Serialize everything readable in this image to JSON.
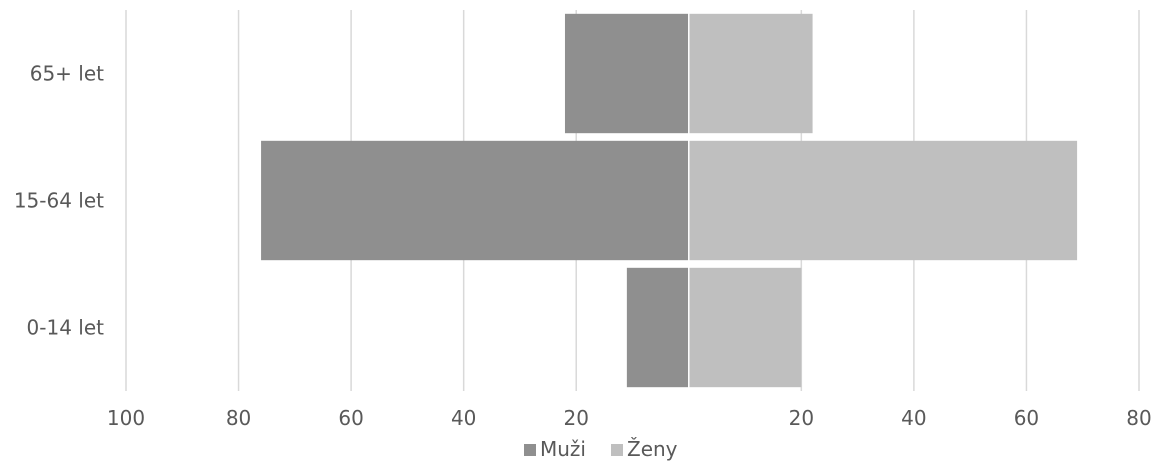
{
  "chart_data": {
    "type": "bar",
    "orientation": "horizontal",
    "layout": "population-pyramid",
    "title": "",
    "xlabel": "",
    "ylabel": "",
    "categories": [
      "65+ let",
      "15-64 let",
      "0-14 let"
    ],
    "series": [
      {
        "name": "Muži",
        "values": [
          22,
          76,
          11
        ],
        "color": "#8f8f8f",
        "side": "left"
      },
      {
        "name": "Ženy",
        "values": [
          22,
          69,
          20
        ],
        "color": "#bfbfbf",
        "side": "right"
      }
    ],
    "x_ticks": [
      {
        "value": -100,
        "label": "100"
      },
      {
        "value": -80,
        "label": "80"
      },
      {
        "value": -60,
        "label": "60"
      },
      {
        "value": -40,
        "label": "40"
      },
      {
        "value": -20,
        "label": "20"
      },
      {
        "value": 20,
        "label": "20"
      },
      {
        "value": 40,
        "label": "40"
      },
      {
        "value": 60,
        "label": "60"
      },
      {
        "value": 80,
        "label": "80"
      }
    ],
    "xlim": [
      -100,
      80
    ],
    "grid": true,
    "legend_position": "bottom"
  }
}
